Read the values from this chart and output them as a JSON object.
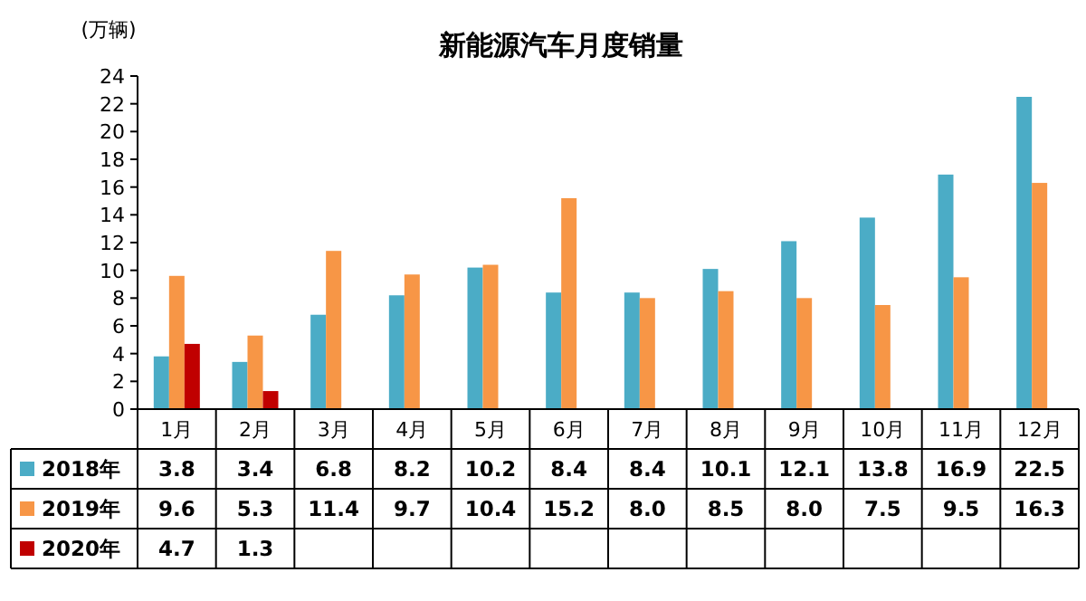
{
  "chart_data": {
    "type": "bar",
    "title": "新能源汽车月度销量",
    "ylabel": "(万辆)",
    "categories": [
      "1月",
      "2月",
      "3月",
      "4月",
      "5月",
      "6月",
      "7月",
      "8月",
      "9月",
      "10月",
      "11月",
      "12月"
    ],
    "series": [
      {
        "name": "2018年",
        "color": "#4bacc6",
        "values": [
          3.8,
          3.4,
          6.8,
          8.2,
          10.2,
          8.4,
          8.4,
          10.1,
          12.1,
          13.8,
          16.9,
          22.5
        ],
        "value_labels": [
          "3.8",
          "3.4",
          "6.8",
          "8.2",
          "10.2",
          "8.4",
          "8.4",
          "10.1",
          "12.1",
          "13.8",
          "16.9",
          "22.5"
        ]
      },
      {
        "name": "2019年",
        "color": "#f79646",
        "values": [
          9.6,
          5.3,
          11.4,
          9.7,
          10.4,
          15.2,
          8.0,
          8.5,
          8.0,
          7.5,
          9.5,
          16.3
        ],
        "value_labels": [
          "9.6",
          "5.3",
          "11.4",
          "9.7",
          "10.4",
          "15.2",
          "8.0",
          "8.5",
          "8.0",
          "7.5",
          "9.5",
          "16.3"
        ]
      },
      {
        "name": "2020年",
        "color": "#c00000",
        "values": [
          4.7,
          1.3,
          null,
          null,
          null,
          null,
          null,
          null,
          null,
          null,
          null,
          null
        ],
        "value_labels": [
          "4.7",
          "1.3",
          null,
          null,
          null,
          null,
          null,
          null,
          null,
          null,
          null,
          null
        ]
      }
    ],
    "ylim": [
      0,
      24
    ],
    "yticks": [
      0,
      2,
      4,
      6,
      8,
      10,
      12,
      14,
      16,
      18,
      20,
      22,
      24
    ],
    "legend": "bottom left",
    "grid": false
  }
}
